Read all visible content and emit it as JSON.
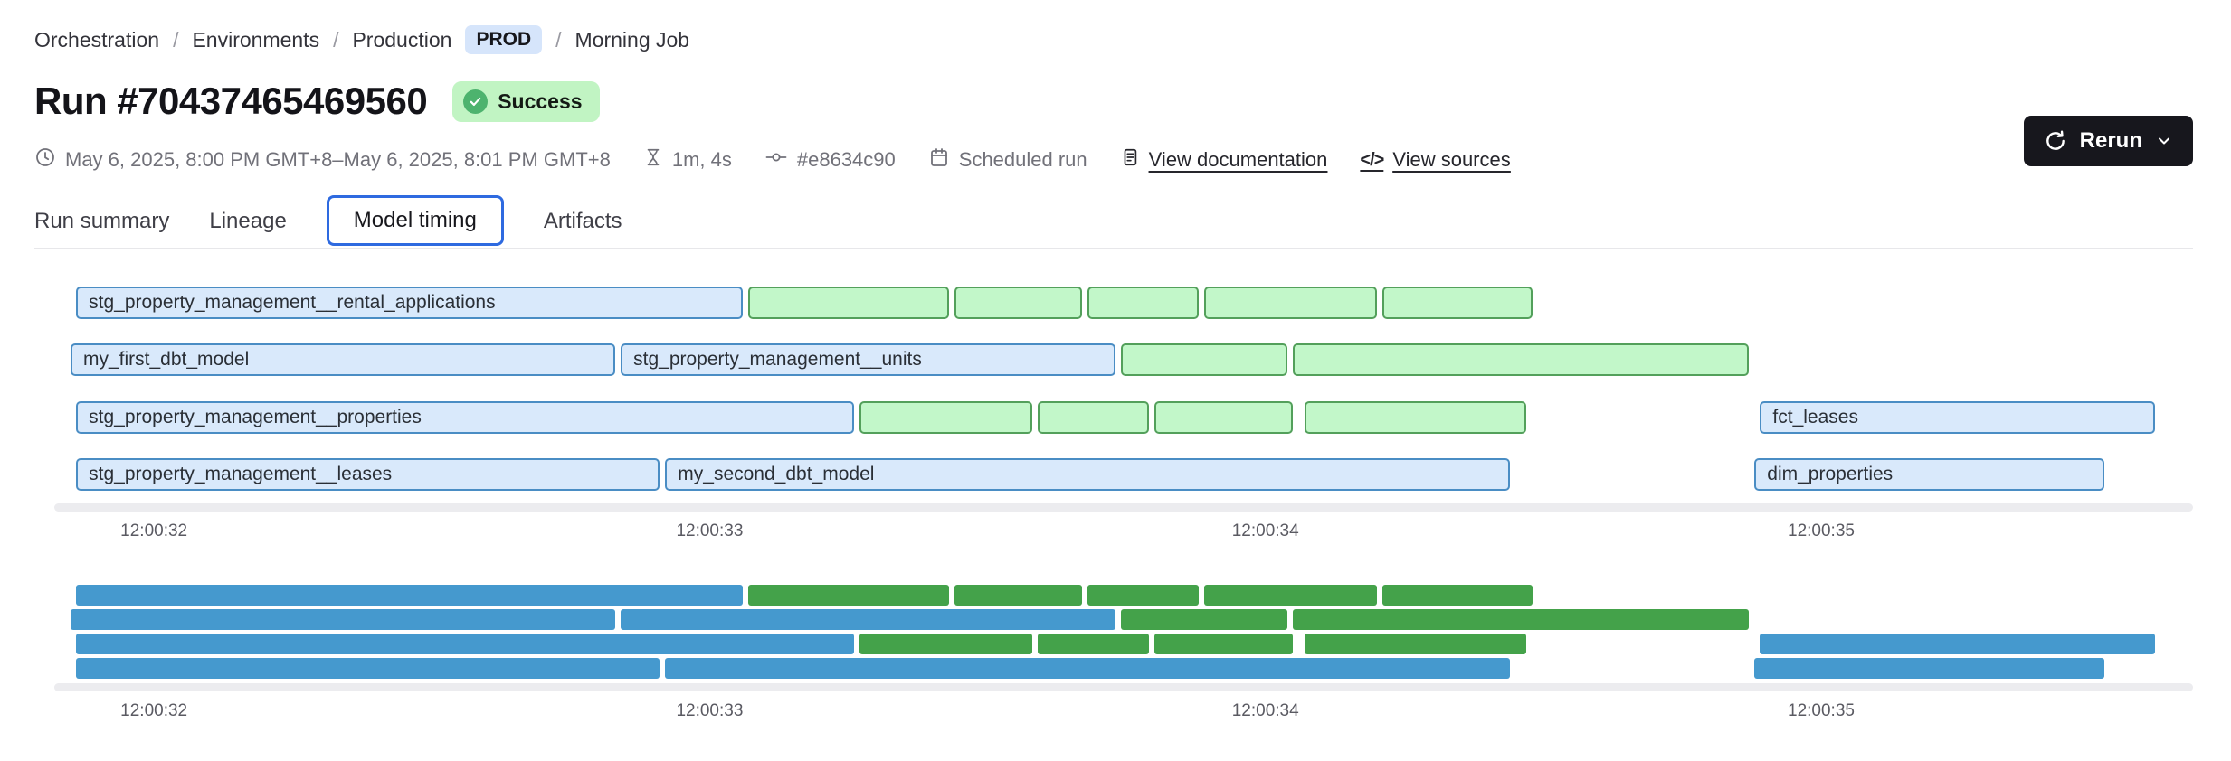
{
  "breadcrumb": {
    "separator": "/",
    "items": [
      "Orchestration",
      "Environments",
      "Production"
    ],
    "env_badge": "PROD",
    "current": "Morning Job"
  },
  "header": {
    "title": "Run #70437465469560",
    "status": {
      "label": "Success",
      "icon": "check-circle-icon"
    }
  },
  "actions": {
    "rerun_label": "Rerun",
    "icons": [
      "refresh-icon",
      "chevron-down-icon"
    ]
  },
  "meta": {
    "items": [
      {
        "icon": "clock-icon",
        "text": "May 6, 2025, 8:00 PM GMT+8–May 6, 2025, 8:01 PM GMT+8"
      },
      {
        "icon": "hourglass-icon",
        "text": "1m, 4s"
      },
      {
        "icon": "commit-icon",
        "text": "#e8634c90"
      },
      {
        "icon": "calendar-icon",
        "text": "Scheduled run"
      },
      {
        "icon": "document-icon",
        "text": "View documentation",
        "link": true
      },
      {
        "icon": "code-icon",
        "text": "View sources",
        "link": true
      }
    ]
  },
  "tabs": [
    {
      "label": "Run summary",
      "selected": false
    },
    {
      "label": "Lineage",
      "selected": false
    },
    {
      "label": "Model timing",
      "selected": true
    },
    {
      "label": "Artifacts",
      "selected": false
    }
  ],
  "chart_data": {
    "type": "gantt",
    "title": "Model timing",
    "x_axis": {
      "domain_seconds": [
        31.85,
        35.63
      ],
      "ticks": [
        {
          "label": "12:00:32",
          "t": 32
        },
        {
          "label": "12:00:33",
          "t": 33
        },
        {
          "label": "12:00:34",
          "t": 34
        },
        {
          "label": "12:00:35",
          "t": 35
        }
      ]
    },
    "palette": {
      "blue_fill": "#d9e9fb",
      "blue_border": "#4a8dc4",
      "green_fill": "#c2f7c9",
      "green_border": "#53a05b",
      "minimap_blue": "#4599ce",
      "minimap_green": "#44a24a"
    },
    "rows": [
      {
        "bars": [
          {
            "label": "stg_property_management__rental_applications",
            "color": "blue",
            "start": 31.86,
            "end": 33.06
          },
          {
            "color": "green",
            "start": 33.07,
            "end": 33.43
          },
          {
            "color": "green",
            "start": 33.44,
            "end": 33.67
          },
          {
            "color": "green",
            "start": 33.68,
            "end": 33.88
          },
          {
            "color": "green",
            "start": 33.89,
            "end": 34.2
          },
          {
            "color": "green",
            "start": 34.21,
            "end": 34.48
          }
        ]
      },
      {
        "bars": [
          {
            "label": "my_first_dbt_model",
            "color": "blue",
            "start": 31.85,
            "end": 32.83
          },
          {
            "label": "stg_property_management__units",
            "color": "blue",
            "start": 32.84,
            "end": 33.73
          },
          {
            "color": "green",
            "start": 33.74,
            "end": 34.04
          },
          {
            "color": "green",
            "start": 34.05,
            "end": 34.87
          }
        ]
      },
      {
        "bars": [
          {
            "label": "stg_property_management__properties",
            "color": "blue",
            "start": 31.86,
            "end": 33.26
          },
          {
            "color": "green",
            "start": 33.27,
            "end": 33.58
          },
          {
            "color": "green",
            "start": 33.59,
            "end": 33.79
          },
          {
            "color": "green",
            "start": 33.8,
            "end": 34.05
          },
          {
            "color": "green",
            "start": 34.07,
            "end": 34.47
          },
          {
            "label": "fct_leases",
            "color": "blue",
            "start": 34.89,
            "end": 35.6
          }
        ]
      },
      {
        "bars": [
          {
            "label": "stg_property_management__leases",
            "color": "blue",
            "start": 31.86,
            "end": 32.91
          },
          {
            "label": "my_second_dbt_model",
            "color": "blue",
            "start": 32.92,
            "end": 34.44
          },
          {
            "label": "dim_properties",
            "color": "blue",
            "start": 34.88,
            "end": 35.51
          }
        ]
      }
    ],
    "minimap": {
      "mirrors_rows": true
    }
  }
}
